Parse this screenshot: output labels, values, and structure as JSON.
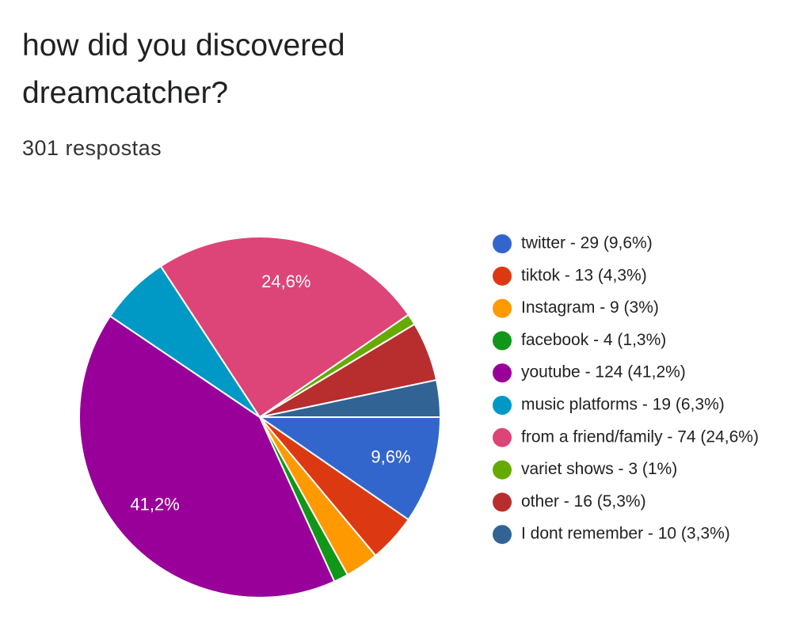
{
  "chart_data": {
    "type": "pie",
    "title": "how did you discovered dreamcatcher?",
    "subtitle": "301 respostas",
    "categories": [
      "twitter - 29 (9,6%)",
      "tiktok - 13 (4,3%)",
      "Instagram - 9 (3%)",
      "facebook - 4 (1,3%)",
      "youtube - 124 (41,2%)",
      "music platforms - 19 (6,3%)",
      "from a friend/family - 74 (24,6%)",
      "variet shows - 3 (1%)",
      "other - 16 (5,3%)",
      "I dont remember - 10 (3,3%)"
    ],
    "values": [
      9.6,
      4.3,
      3,
      1.3,
      41.2,
      6.3,
      24.6,
      1,
      5.3,
      3.3
    ],
    "value_labels": [
      "9,6%",
      null,
      null,
      null,
      "41,2%",
      null,
      "24,6%",
      null,
      null,
      null
    ],
    "colors": [
      "#3366cc",
      "#dc3912",
      "#ff9900",
      "#109618",
      "#990099",
      "#0099c6",
      "#dd4477",
      "#66aa00",
      "#b82e2e",
      "#316395"
    ],
    "legend": "right"
  }
}
